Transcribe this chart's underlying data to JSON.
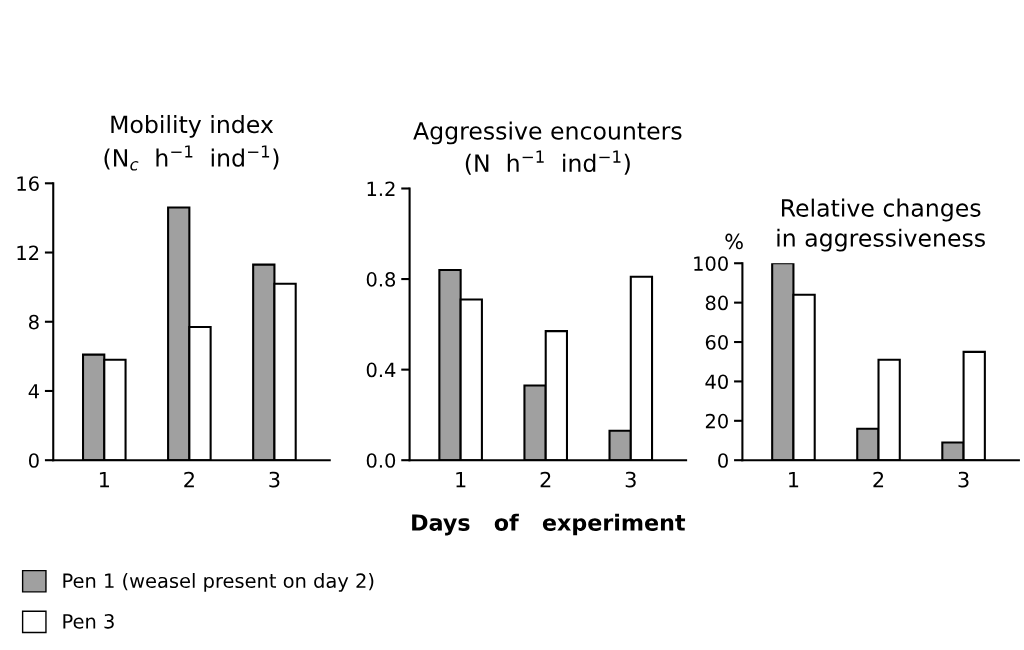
{
  "chart_data": [
    {
      "type": "bar",
      "title": "Mobility index\n(N$_{c}$  h$^{−1}$  ind$^{−1}$)",
      "categories": [
        "1",
        "2",
        "3"
      ],
      "ylim": [
        0,
        16
      ],
      "yticks": [
        0,
        4,
        8,
        12,
        16
      ],
      "legend": "bottom left",
      "grid": false,
      "series": [
        {
          "name": "Pen 1 (weasel present on day 2)",
          "color": "#a0a0a0",
          "values": [
            6.1,
            14.6,
            11.3
          ]
        },
        {
          "name": "Pen 3",
          "color": "#ffffff",
          "values": [
            5.8,
            7.7,
            10.2
          ]
        }
      ]
    },
    {
      "type": "bar",
      "title": "Aggressive encounters\n(N  h$^{−1}$  ind$^{−1}$)",
      "xlabel": "Days   of   experiment",
      "categories": [
        "1",
        "2",
        "3"
      ],
      "ylim": [
        0,
        1.2
      ],
      "yticks": [
        {
          "value": 0,
          "label": "0.0"
        },
        0.4,
        0.8,
        1.2
      ],
      "grid": false,
      "series": [
        {
          "color": "#a0a0a0",
          "values": [
            0.84,
            0.33,
            0.13
          ]
        },
        {
          "color": "#ffffff",
          "values": [
            0.71,
            0.57,
            0.81
          ]
        }
      ]
    },
    {
      "type": "bar",
      "title": "Relative changes\nin aggressiveness",
      "ylabel": "%",
      "categories": [
        "1",
        "2",
        "3"
      ],
      "ylim": [
        0,
        100
      ],
      "yticks": [
        0,
        20,
        40,
        60,
        80,
        100
      ],
      "grid": false,
      "series": [
        {
          "color": "#a0a0a0",
          "values": [
            100,
            16,
            9
          ]
        },
        {
          "color": "#ffffff",
          "values": [
            84,
            51,
            55
          ]
        }
      ]
    }
  ]
}
